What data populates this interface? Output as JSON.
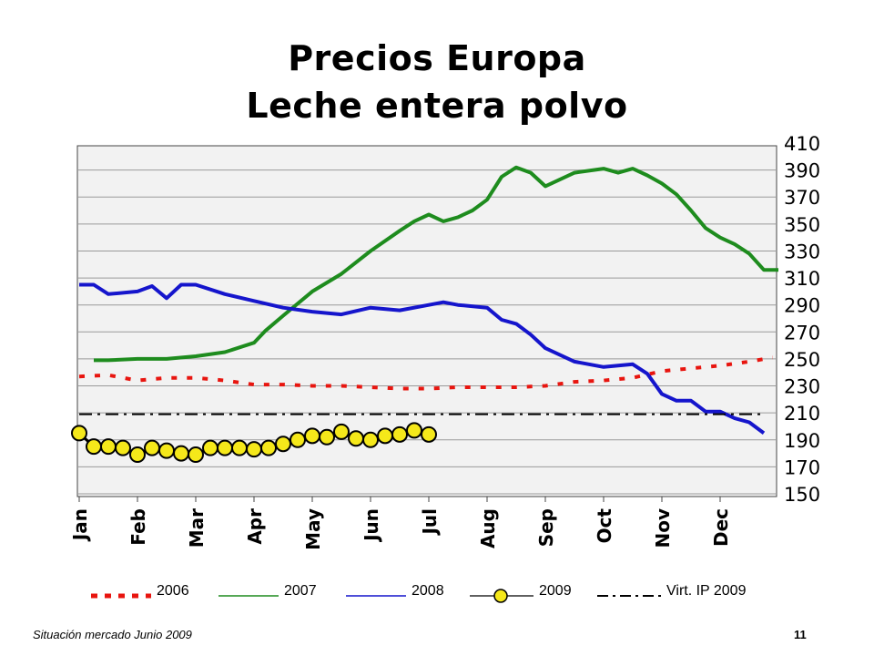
{
  "slide": {
    "title_line1": "Precios Europa",
    "title_line2": "Leche entera polvo",
    "footer_left": "Situación mercado Junio 2009",
    "page_number": "11"
  },
  "chart_data": {
    "type": "line",
    "title": "",
    "xlabel": "",
    "ylabel": "",
    "ylim": [
      150,
      410
    ],
    "y_ticks": [
      150,
      170,
      190,
      210,
      230,
      250,
      270,
      290,
      310,
      330,
      350,
      370,
      390,
      410
    ],
    "y_axis_position": "right",
    "x_categories": [
      "Jan",
      "Feb",
      "Mar",
      "Apr",
      "May",
      "Jun",
      "Jul",
      "Aug",
      "Sep",
      "Oct",
      "Nov",
      "Dec"
    ],
    "grid": true,
    "legend_position": "bottom",
    "series": [
      {
        "name": "2006",
        "color": "#e8150f",
        "style": "dashed-square",
        "x": [
          0,
          0.5,
          1,
          1.5,
          2,
          2.5,
          3,
          3.5,
          4,
          4.5,
          5,
          5.5,
          6,
          6.5,
          7,
          7.5,
          8,
          8.5,
          9,
          9.5,
          10,
          10.5,
          11,
          11.5,
          11.9
        ],
        "values": [
          237,
          238,
          234,
          236,
          236,
          234,
          231,
          231,
          230,
          230,
          229,
          228,
          228,
          229,
          229,
          229,
          230,
          233,
          234,
          236,
          241,
          243,
          245,
          248,
          251
        ]
      },
      {
        "name": "2007",
        "color": "#1e8c1e",
        "style": "solid",
        "x": [
          0.25,
          0.5,
          1,
          1.5,
          2,
          2.5,
          3,
          3.2,
          3.5,
          4,
          4.5,
          5,
          5.5,
          5.75,
          6,
          6.25,
          6.5,
          6.75,
          7,
          7.25,
          7.5,
          7.75,
          8,
          8.5,
          9,
          9.25,
          9.5,
          9.75,
          10,
          10.25,
          10.5,
          10.75,
          11,
          11.25,
          11.5,
          11.75,
          12
        ],
        "values": [
          249,
          249,
          250,
          250,
          252,
          255,
          262,
          271,
          282,
          300,
          313,
          330,
          345,
          352,
          357,
          352,
          355,
          360,
          368,
          385,
          392,
          388,
          378,
          388,
          391,
          388,
          391,
          386,
          380,
          372,
          360,
          347,
          340,
          335,
          328,
          316,
          316
        ]
      },
      {
        "name": "2008",
        "color": "#1515cc",
        "style": "solid",
        "x": [
          0,
          0.25,
          0.5,
          1,
          1.25,
          1.5,
          1.75,
          2,
          2.5,
          3,
          3.5,
          4,
          4.5,
          5,
          5.5,
          6,
          6.25,
          6.5,
          7,
          7.25,
          7.5,
          7.75,
          8,
          8.5,
          9,
          9.5,
          9.75,
          10,
          10.25,
          10.5,
          10.75,
          11,
          11.25,
          11.5,
          11.75
        ],
        "values": [
          305,
          305,
          298,
          300,
          304,
          295,
          305,
          305,
          298,
          293,
          288,
          285,
          283,
          288,
          286,
          290,
          292,
          290,
          288,
          279,
          276,
          268,
          258,
          248,
          244,
          246,
          239,
          224,
          219,
          219,
          211,
          211,
          206,
          203,
          195
        ]
      },
      {
        "name": "2009",
        "color": "#000000",
        "marker_fill": "#f5e81a",
        "style": "marker",
        "x": [
          0,
          0.25,
          0.5,
          0.75,
          1,
          1.25,
          1.5,
          1.75,
          2,
          2.25,
          2.5,
          2.75,
          3,
          3.25,
          3.5,
          3.75,
          4,
          4.25,
          4.5,
          4.75,
          5,
          5.25,
          5.5,
          5.75,
          6
        ],
        "values": [
          195,
          185,
          185,
          184,
          179,
          184,
          182,
          180,
          179,
          184,
          184,
          184,
          183,
          184,
          187,
          190,
          193,
          192,
          196,
          191,
          190,
          193,
          194,
          197,
          194
        ]
      },
      {
        "name": "Virt. IP 2009",
        "color": "#000000",
        "style": "dash-dot",
        "x": [
          0,
          11.75
        ],
        "values": [
          209,
          209
        ]
      }
    ]
  }
}
